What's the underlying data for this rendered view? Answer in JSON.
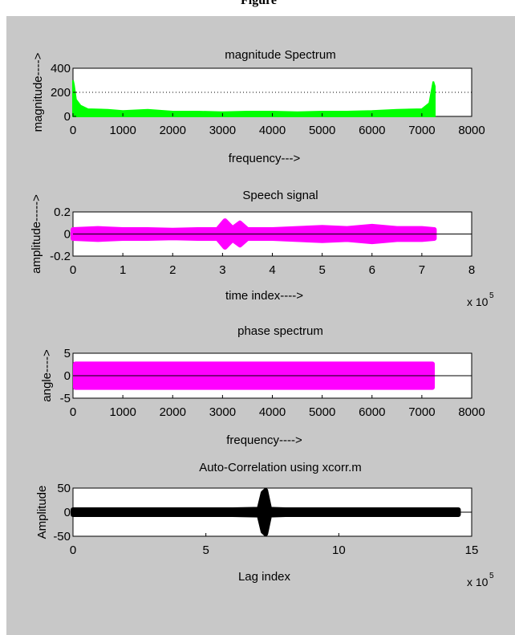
{
  "header_text": "Figure",
  "chart_data": [
    {
      "type": "line",
      "title": "magnitude Spectrum",
      "xlabel": "frequency--->",
      "ylabel": "magnitude---->",
      "xlim": [
        0,
        8000
      ],
      "ylim": [
        0,
        400
      ],
      "xticks": [
        "0",
        "1000",
        "2000",
        "3000",
        "4000",
        "5000",
        "6000",
        "7000",
        "8000"
      ],
      "yticks": [
        "0",
        "200",
        "400"
      ],
      "grid": "y-dotted",
      "exponent": "",
      "color": "#00ff00",
      "series": [
        {
          "x": [
            0,
            20,
            60,
            150,
            300,
            700,
            1000,
            1500,
            2000,
            2500,
            3000,
            3500,
            4000,
            4500,
            5000,
            5500,
            6000,
            6500,
            7000,
            7150,
            7230,
            7260
          ],
          "y": [
            300,
            260,
            140,
            90,
            60,
            55,
            45,
            55,
            40,
            40,
            35,
            40,
            40,
            35,
            40,
            40,
            45,
            55,
            60,
            110,
            290,
            250
          ]
        }
      ]
    },
    {
      "type": "line",
      "title": "Speech signal",
      "xlabel": "time index---->",
      "ylabel": "amplitude----->",
      "xlim": [
        0,
        8
      ],
      "ylim": [
        -0.2,
        0.2
      ],
      "xticks": [
        "0",
        "1",
        "2",
        "3",
        "4",
        "5",
        "6",
        "7",
        "8"
      ],
      "yticks": [
        "-0.2",
        "0",
        "0.2"
      ],
      "exponent": "x 10",
      "exponent_power": "5",
      "color": "#ff00ff",
      "series": [
        {
          "x": [
            0,
            0.5,
            1,
            1.5,
            2,
            2.5,
            2.9,
            3.05,
            3.2,
            3.35,
            3.5,
            4,
            4.5,
            5,
            5.5,
            6,
            6.5,
            7,
            7.25
          ],
          "y": [
            0.04,
            0.05,
            0.04,
            0.04,
            0.035,
            0.04,
            0.04,
            0.12,
            0.05,
            0.1,
            0.04,
            0.04,
            0.05,
            0.06,
            0.05,
            0.07,
            0.05,
            0.05,
            0.04
          ]
        }
      ]
    },
    {
      "type": "area",
      "title": "phase spectrum",
      "xlabel": "frequency---->",
      "ylabel": "angle---->",
      "xlim": [
        0,
        8000
      ],
      "ylim": [
        -5,
        5
      ],
      "xticks": [
        "0",
        "1000",
        "2000",
        "3000",
        "4000",
        "5000",
        "6000",
        "7000",
        "8000"
      ],
      "yticks": [
        "-5",
        "0",
        "5"
      ],
      "exponent": "",
      "color": "#ff00ff",
      "series": [
        {
          "x": [
            0,
            7260
          ],
          "y_min": [
            -3.14,
            -3.14
          ],
          "y_max": [
            3.14,
            3.14
          ]
        }
      ]
    },
    {
      "type": "line",
      "title": "Auto-Correlation using xcorr.m",
      "xlabel": "Lag index",
      "ylabel": "Amplitude",
      "xlim": [
        0,
        15
      ],
      "ylim": [
        -50,
        50
      ],
      "xticks": [
        "0",
        "5",
        "10",
        "15"
      ],
      "yticks": [
        "-50",
        "0",
        "50"
      ],
      "exponent": "x 10",
      "exponent_power": "5",
      "color": "#000000",
      "series": [
        {
          "x": [
            0,
            1,
            2,
            3,
            4,
            5,
            6,
            7,
            7.15,
            7.25,
            7.4,
            8,
            9,
            10,
            11,
            12,
            13,
            14,
            14.5
          ],
          "y": [
            5,
            5,
            5,
            5,
            5,
            5,
            5,
            6,
            40,
            45,
            6,
            5,
            5,
            5,
            5,
            5,
            5,
            5,
            5
          ]
        }
      ]
    }
  ]
}
